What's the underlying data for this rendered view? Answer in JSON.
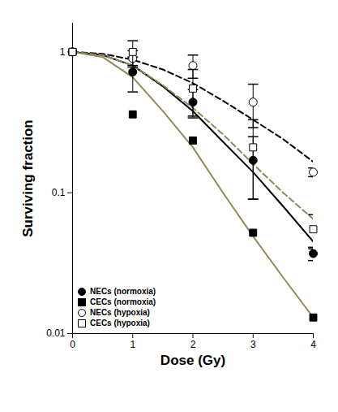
{
  "chart_data": {
    "type": "scatter",
    "xlabel": "Dose (Gy)",
    "ylabel": "Surviving fraction",
    "log": "y",
    "xlim": [
      0,
      4
    ],
    "ylim": [
      0.01,
      1.6
    ],
    "xticks": [
      0,
      1,
      2,
      3,
      4
    ],
    "yticks": [
      0.01,
      0.1,
      1
    ],
    "legend": "lower left",
    "x": [
      0,
      1,
      2,
      3,
      4
    ],
    "series": [
      {
        "name": "NECs (normoxia)",
        "color": "#000000",
        "marker": "circle",
        "values": [
          1,
          0.72,
          0.44,
          0.17,
          0.037
        ],
        "errors": [
          null,
          0.2,
          0.1,
          0.08,
          0.004
        ],
        "fit": {
          "color": "#000000",
          "line_style": "solid",
          "x": [
            0,
            0.5,
            1,
            1.5,
            2,
            2.5,
            3,
            3.5,
            4
          ],
          "values": [
            1,
            0.95,
            0.8,
            0.57,
            0.38,
            0.23,
            0.14,
            0.08,
            0.045
          ]
        }
      },
      {
        "name": "CECs (normoxia)",
        "color": "#000000",
        "marker": "square",
        "values": [
          1,
          0.36,
          0.235,
          0.052,
          0.013
        ],
        "errors": [
          null,
          null,
          null,
          null,
          null
        ],
        "fit": {
          "color": "#8f8a5c",
          "line_style": "solid",
          "x": [
            0,
            0.5,
            1,
            1.5,
            2,
            2.5,
            3,
            3.5,
            4
          ],
          "values": [
            1,
            0.92,
            0.66,
            0.38,
            0.21,
            0.1,
            0.049,
            0.025,
            0.013
          ]
        }
      },
      {
        "name": "NECs (hypoxia)",
        "color": "#000000",
        "marker": "open circle",
        "values": [
          1,
          0.9,
          0.8,
          0.44,
          0.14
        ],
        "errors": [
          null,
          0.12,
          0.15,
          0.15,
          0.01
        ],
        "fit": {
          "color": "#000000",
          "line_style": "dashed",
          "x": [
            0,
            0.5,
            1,
            1.5,
            2,
            2.5,
            3,
            3.5,
            4
          ],
          "values": [
            1,
            0.97,
            0.88,
            0.75,
            0.6,
            0.45,
            0.33,
            0.24,
            0.166
          ]
        }
      },
      {
        "name": "CECs (hypoxia)",
        "color": "#000000",
        "marker": "open square",
        "values": [
          1,
          1.0,
          0.55,
          0.21,
          0.055
        ],
        "errors": [
          null,
          0.2,
          0.2,
          0.12,
          0.015
        ],
        "fit": {
          "color": "#8f8a5c",
          "line_style": "dashed",
          "x": [
            0,
            0.5,
            1,
            1.5,
            2,
            2.5,
            3,
            3.5,
            4
          ],
          "values": [
            1,
            0.95,
            0.8,
            0.58,
            0.4,
            0.26,
            0.16,
            0.1,
            0.065
          ]
        }
      }
    ]
  }
}
